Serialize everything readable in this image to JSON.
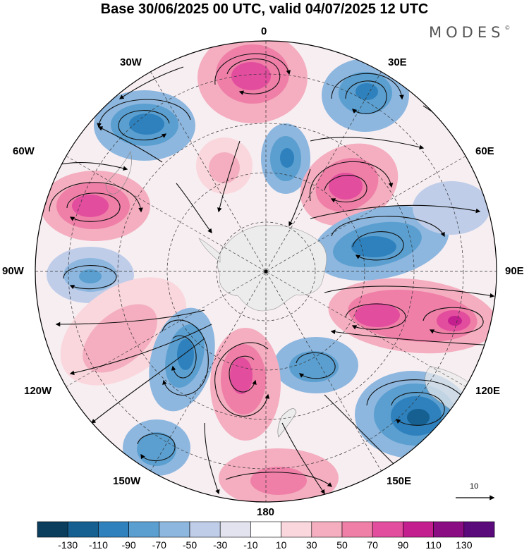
{
  "title": "Base 30/06/2025 00 UTC, valid 04/07/2025 12 UTC",
  "brand": "MODES",
  "brand_mark": "©",
  "meridian_labels": {
    "lon_0": "0",
    "lon_30e": "30E",
    "lon_60e": "60E",
    "lon_90e": "90E",
    "lon_120e": "120E",
    "lon_150e": "150E",
    "lon_180": "180",
    "lon_150w": "150W",
    "lon_120w": "120W",
    "lon_90w": "90W",
    "lon_60w": "60W",
    "lon_30w": "30W"
  },
  "vector_scale": {
    "label": "10"
  },
  "colorbar": {
    "colors": [
      "#0b3d5c",
      "#155f91",
      "#2e81bd",
      "#5a9fd0",
      "#8db7df",
      "#bfcde9",
      "#e3e3f0",
      "#ffffff",
      "#f9d7dd",
      "#f4aec0",
      "#ef7fa7",
      "#e24d9e",
      "#c41f8e",
      "#8a0d83",
      "#5a0a7a"
    ],
    "ticks": [
      "-130",
      "-110",
      "-90",
      "-70",
      "-50",
      "-30",
      "-10",
      "10",
      "30",
      "50",
      "70",
      "90",
      "110",
      "130"
    ]
  },
  "colors": {
    "land_grey": "#e6e6e6",
    "text": "#000000"
  }
}
